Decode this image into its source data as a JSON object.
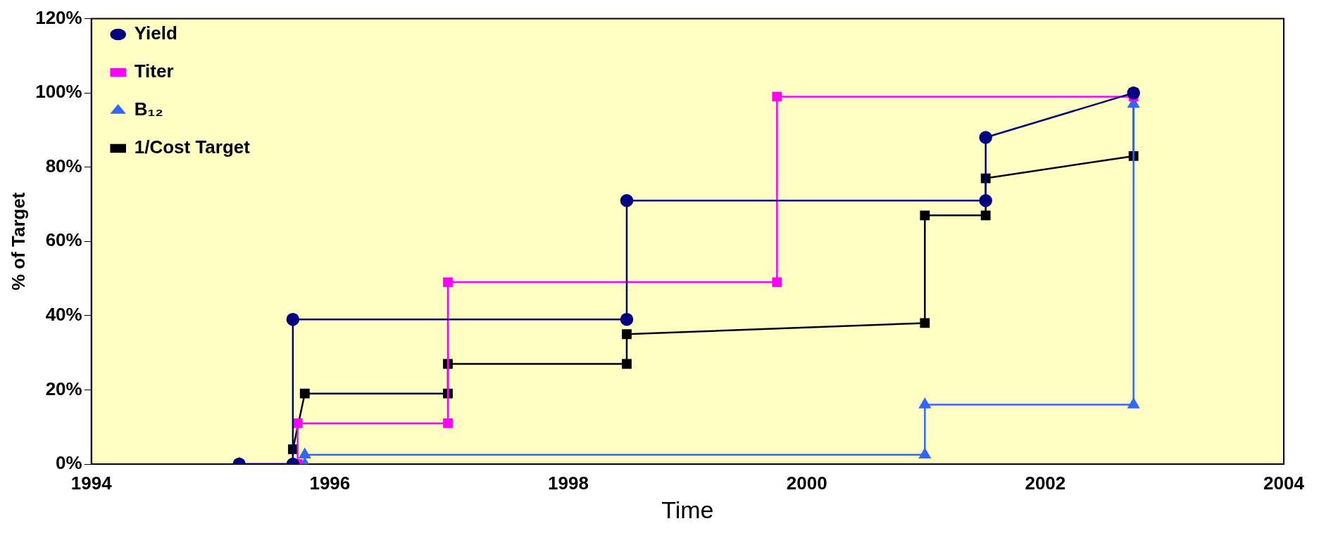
{
  "chart_data": {
    "type": "line",
    "xlabel": "Time",
    "ylabel": "% of Target",
    "xlim": [
      1994,
      2004
    ],
    "xticks": [
      1994,
      1996,
      1998,
      2000,
      2002,
      2004
    ],
    "ylim": [
      0,
      120
    ],
    "yticks": [
      {
        "value": 0,
        "label": "0%"
      },
      {
        "value": 20,
        "label": "20%"
      },
      {
        "value": 40,
        "label": "40%"
      },
      {
        "value": 60,
        "label": "60%"
      },
      {
        "value": 80,
        "label": "80%"
      },
      {
        "value": 100,
        "label": "100%"
      },
      {
        "value": 120,
        "label": "120%"
      }
    ],
    "grid": false,
    "legend": "top left",
    "line_style": "solid",
    "series": [
      {
        "name": "Yield",
        "color": "#000080",
        "marker": "circle",
        "x": [
          1995.24,
          1995.69,
          1995.69,
          1998.49,
          1998.49,
          2001.5,
          2001.5,
          2002.74
        ],
        "values": [
          0,
          0,
          39,
          39,
          71,
          71,
          88,
          100
        ]
      },
      {
        "name": "Titer",
        "color": "#ff00ff",
        "marker": "square",
        "x": [
          1995.24,
          1995.73,
          1995.73,
          1996.99,
          1996.99,
          1999.75,
          1999.75,
          2002.74
        ],
        "values": [
          0,
          0,
          11,
          11,
          49,
          49,
          99,
          99
        ]
      },
      {
        "name": "B₁₂",
        "color": "#3366ff",
        "marker": "triangle",
        "x": [
          1995.24,
          1995.79,
          1995.79,
          2000.99,
          2000.99,
          2002.74,
          2002.74
        ],
        "values": [
          0,
          0,
          2.5,
          2.5,
          16,
          16,
          97
        ]
      },
      {
        "name": "1/Cost Target",
        "color": "#000000",
        "marker": "square",
        "x": [
          1995.69,
          1995.79,
          1996.99,
          1996.99,
          1998.49,
          1998.49,
          2000.99,
          2000.99,
          2001.5,
          2001.5,
          2002.74,
          2002.74
        ],
        "values": [
          4,
          19,
          19,
          27,
          27,
          35,
          38,
          67,
          67,
          77,
          83,
          100
        ]
      }
    ]
  }
}
